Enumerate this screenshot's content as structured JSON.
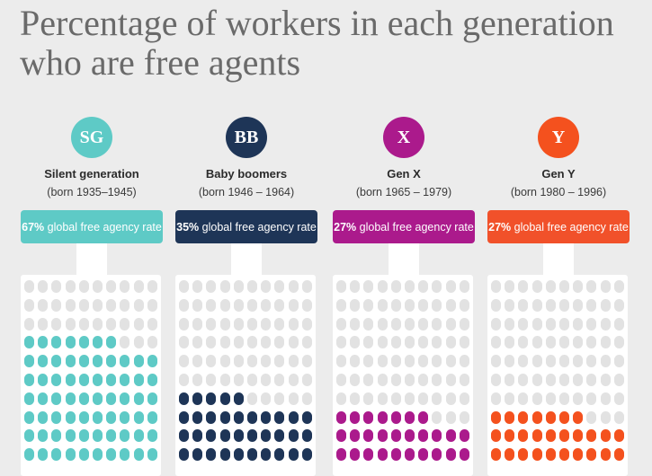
{
  "title": "Percentage of workers in each generation who are free agents",
  "chart_data": {
    "type": "waffle",
    "title": "Percentage of workers in each generation who are free agents",
    "units_per_grid": 100,
    "series": [
      {
        "badge": "SG",
        "name": "Silent generation",
        "born": "(born 1935–1945)",
        "value": 67,
        "pct_text": "67%",
        "rate_text": " global free agency rate",
        "color": "#5ecac6",
        "box_color": "#5ecac6"
      },
      {
        "badge": "BB",
        "name": "Baby boomers",
        "born": "(born 1946 – 1964)",
        "value": 35,
        "pct_text": "35%",
        "rate_text": " global free agency rate",
        "color": "#1e3557",
        "box_color": "#1e3557"
      },
      {
        "badge": "X",
        "name": "Gen X",
        "born": "(born 1965 – 1979)",
        "value": 27,
        "pct_text": "27%",
        "rate_text": " global free agency rate",
        "color": "#ab1a8c",
        "box_color": "#ab1a8c"
      },
      {
        "badge": "Y",
        "name": "Gen Y",
        "born": "(born 1980 – 1996)",
        "value": 27,
        "pct_text": "27%",
        "rate_text": " global free agency rate",
        "color": "#f4511e",
        "box_color": "#f1512a"
      }
    ],
    "empty_color": "#e2e2e2"
  }
}
